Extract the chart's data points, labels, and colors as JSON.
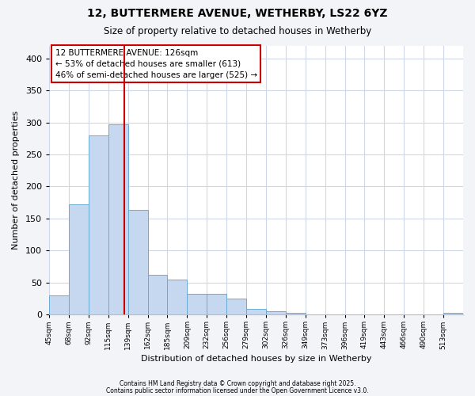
{
  "title1": "12, BUTTERMERE AVENUE, WETHERBY, LS22 6YZ",
  "title2": "Size of property relative to detached houses in Wetherby",
  "xlabel": "Distribution of detached houses by size in Wetherby",
  "ylabel": "Number of detached properties",
  "bin_labels": [
    "45sqm",
    "68sqm",
    "92sqm",
    "115sqm",
    "139sqm",
    "162sqm",
    "185sqm",
    "209sqm",
    "232sqm",
    "256sqm",
    "279sqm",
    "302sqm",
    "326sqm",
    "349sqm",
    "373sqm",
    "396sqm",
    "419sqm",
    "443sqm",
    "466sqm",
    "490sqm",
    "513sqm"
  ],
  "bar_heights": [
    30,
    172,
    280,
    297,
    163,
    62,
    55,
    32,
    32,
    25,
    9,
    5,
    3,
    0,
    0,
    0,
    0,
    0,
    0,
    0,
    3
  ],
  "bar_color": "#c5d8f0",
  "bar_edge_color": "#6aaad4",
  "vline_x": 3.83,
  "vline_color": "#cc0000",
  "annotation_text": "12 BUTTERMERE AVENUE: 126sqm\n← 53% of detached houses are smaller (613)\n46% of semi-detached houses are larger (525) →",
  "annotation_box_color": "#ffffff",
  "annotation_box_edge": "#cc0000",
  "ylim": [
    0,
    420
  ],
  "yticks": [
    0,
    50,
    100,
    150,
    200,
    250,
    300,
    350,
    400
  ],
  "footnote1": "Contains HM Land Registry data © Crown copyright and database right 2025.",
  "footnote2": "Contains public sector information licensed under the Open Government Licence v3.0.",
  "fig_bg_color": "#f2f4f8",
  "plot_bg_color": "#ffffff",
  "grid_color": "#d0d8e8"
}
